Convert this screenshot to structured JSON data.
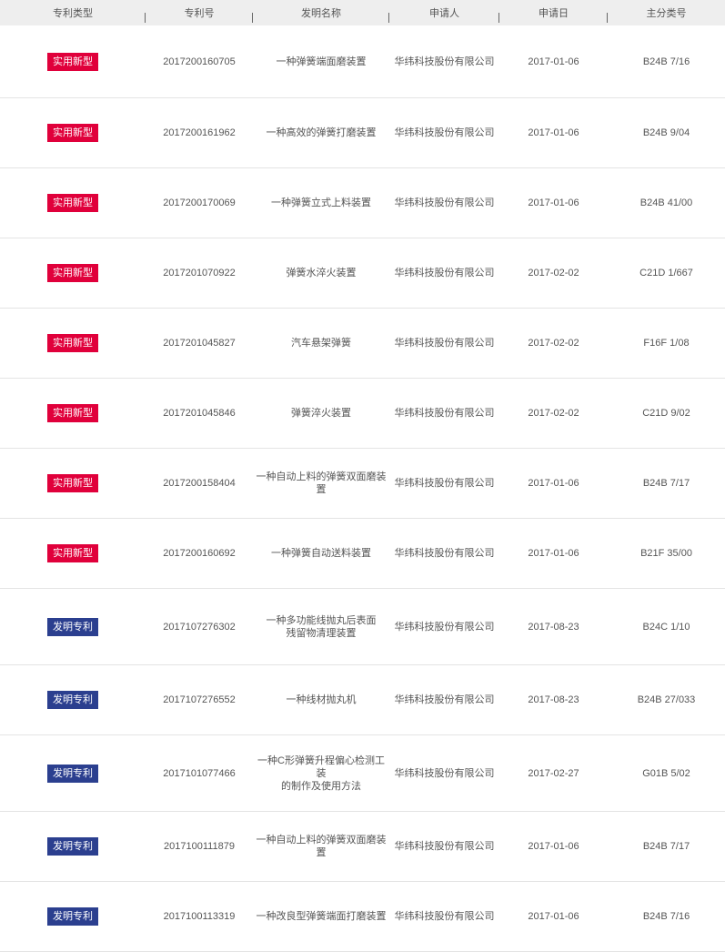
{
  "headers": [
    "专利类型",
    "专利号",
    "发明名称",
    "申请人",
    "申请日",
    "主分类号"
  ],
  "colors": {
    "utility": "#e0003b",
    "invention": "#2b3f8f"
  },
  "rows": [
    {
      "type": "实用新型",
      "kind": "utility",
      "number": "2017200160705",
      "name": "一种弹簧端面磨装置",
      "applicant": "华纬科技股份有限公司",
      "date": "2017-01-06",
      "class": "B24B 7/16"
    },
    {
      "type": "实用新型",
      "kind": "utility",
      "number": "2017200161962",
      "name": "一种高效的弹簧打磨装置",
      "applicant": "华纬科技股份有限公司",
      "date": "2017-01-06",
      "class": "B24B 9/04"
    },
    {
      "type": "实用新型",
      "kind": "utility",
      "number": "2017200170069",
      "name": "一种弹簧立式上料装置",
      "applicant": "华纬科技股份有限公司",
      "date": "2017-01-06",
      "class": "B24B 41/00"
    },
    {
      "type": "实用新型",
      "kind": "utility",
      "number": "2017201070922",
      "name": "弹簧水淬火装置",
      "applicant": "华纬科技股份有限公司",
      "date": "2017-02-02",
      "class": "C21D 1/667"
    },
    {
      "type": "实用新型",
      "kind": "utility",
      "number": "2017201045827",
      "name": "汽车悬架弹簧",
      "applicant": "华纬科技股份有限公司",
      "date": "2017-02-02",
      "class": "F16F 1/08"
    },
    {
      "type": "实用新型",
      "kind": "utility",
      "number": "2017201045846",
      "name": "弹簧淬火装置",
      "applicant": "华纬科技股份有限公司",
      "date": "2017-02-02",
      "class": "C21D 9/02"
    },
    {
      "type": "实用新型",
      "kind": "utility",
      "number": "2017200158404",
      "name": "一种自动上料的弹簧双面磨装置",
      "applicant": "华纬科技股份有限公司",
      "date": "2017-01-06",
      "class": "B24B 7/17"
    },
    {
      "type": "实用新型",
      "kind": "utility",
      "number": "2017200160692",
      "name": "一种弹簧自动送料装置",
      "applicant": "华纬科技股份有限公司",
      "date": "2017-01-06",
      "class": "B21F 35/00"
    },
    {
      "type": "发明专利",
      "kind": "invention",
      "number": "2017107276302",
      "name": "一种多功能线抛丸后表面\n残留物清理装置",
      "applicant": "华纬科技股份有限公司",
      "date": "2017-08-23",
      "class": "B24C 1/10"
    },
    {
      "type": "发明专利",
      "kind": "invention",
      "number": "2017107276552",
      "name": "一种线材抛丸机",
      "applicant": "华纬科技股份有限公司",
      "date": "2017-08-23",
      "class": "B24B 27/033"
    },
    {
      "type": "发明专利",
      "kind": "invention",
      "number": "2017101077466",
      "name": "一种C形弹簧升程偏心检测工装\n的制作及使用方法",
      "applicant": "华纬科技股份有限公司",
      "date": "2017-02-27",
      "class": "G01B 5/02"
    },
    {
      "type": "发明专利",
      "kind": "invention",
      "number": "2017100111879",
      "name": "一种自动上料的弹簧双面磨装置",
      "applicant": "华纬科技股份有限公司",
      "date": "2017-01-06",
      "class": "B24B 7/17"
    },
    {
      "type": "发明专利",
      "kind": "invention",
      "number": "2017100113319",
      "name": "一种改良型弹簧端面打磨装置",
      "applicant": "华纬科技股份有限公司",
      "date": "2017-01-06",
      "class": "B24B 7/16"
    }
  ]
}
